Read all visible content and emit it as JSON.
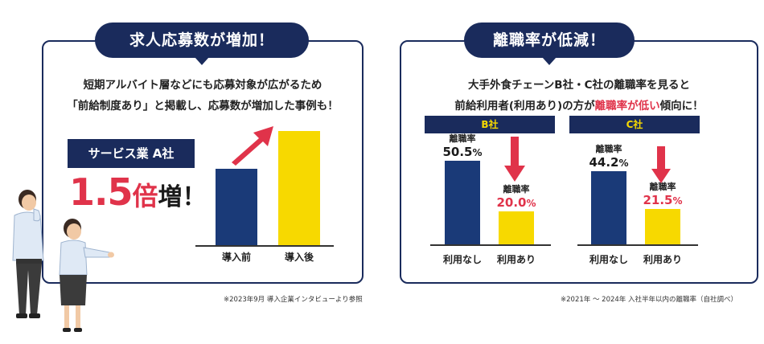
{
  "left": {
    "heading": "求人応募数が増加！",
    "intro_line1": "短期アルバイト層などにも応募対象が広がるため",
    "intro_line2": "「前給制度あり」と掲載し、応募数が増加した事例も！",
    "company": "サービス業 A社",
    "multiplier_num": "1.5",
    "multiplier_unit": "倍",
    "multiplier_rest": "増！",
    "note": "※2023年9月 導入企業インタビューより参照"
  },
  "right": {
    "heading": "離職率が低減！",
    "intro_line1": "大手外食チェーンB社・C社の離職率を見ると",
    "intro_line2_a": "前給利用者(利用あり)の方が",
    "intro_line2_b": "離職率が低い",
    "intro_line2_c": "傾向に！",
    "note": "※2021年 ～ 2024年 入社半年以内の離職率（自社調べ）"
  },
  "colors": {
    "navy": "#1a3a78",
    "yellow": "#f7d900",
    "red": "#e0334a",
    "dark_navy": "#1a2b5c"
  },
  "chart_data": [
    {
      "type": "bar",
      "title": "",
      "categories": [
        "導入前",
        "導入後"
      ],
      "values": [
        1,
        1.5
      ],
      "colors": [
        "#1a3a78",
        "#f7d900"
      ],
      "annotation": "up-arrow"
    },
    {
      "type": "bar",
      "title": "B社",
      "categories": [
        "利用なし",
        "利用あり"
      ],
      "series": [
        {
          "values": [
            50.5,
            20.0
          ]
        }
      ],
      "value_label": "離職率",
      "value_texts": [
        "50.5",
        "20.0"
      ],
      "unit": "%",
      "colors": [
        "#1a3a78",
        "#f7d900"
      ]
    },
    {
      "type": "bar",
      "title": "C社",
      "categories": [
        "利用なし",
        "利用あり"
      ],
      "series": [
        {
          "values": [
            44.2,
            21.5
          ]
        }
      ],
      "value_label": "離職率",
      "value_texts": [
        "44.2",
        "21.5"
      ],
      "unit": "%",
      "colors": [
        "#1a3a78",
        "#f7d900"
      ]
    }
  ]
}
